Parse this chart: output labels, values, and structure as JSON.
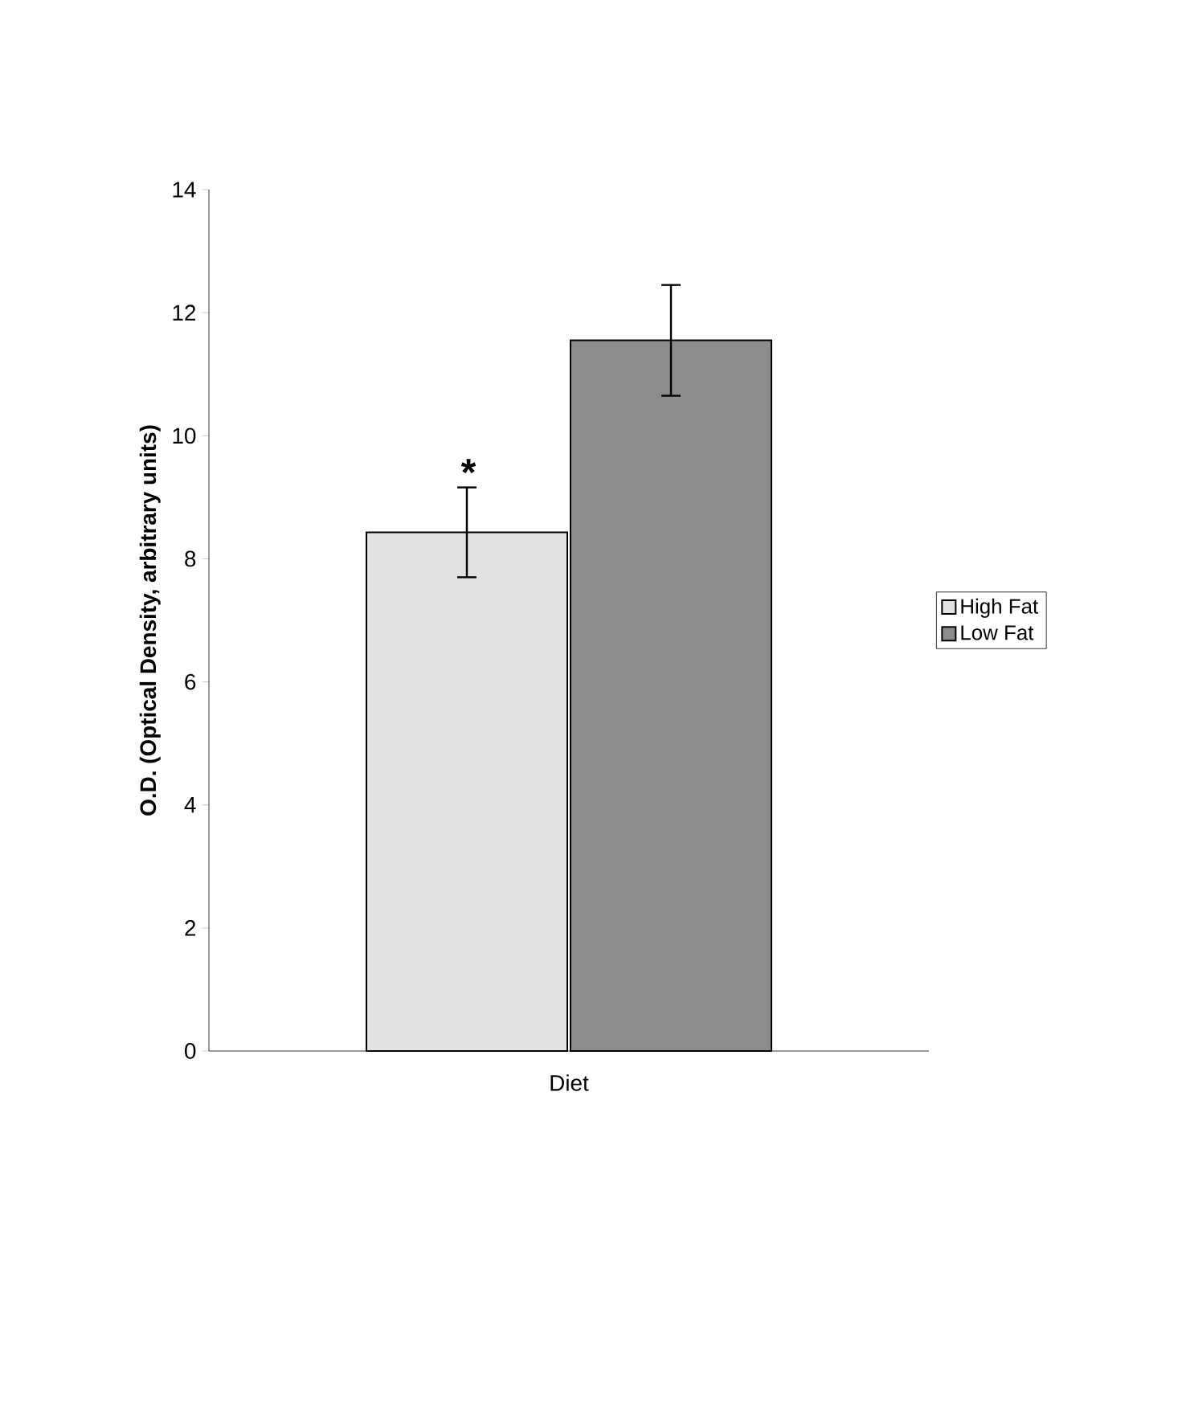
{
  "chart_data": {
    "type": "bar",
    "ylabel": "O.D. (Optical Density, arbitrary units)",
    "xlabel": "Diet",
    "categories": [
      null
    ],
    "series": [
      {
        "name": "High Fat",
        "color": "#e2e2e2",
        "values": [
          8.43
        ],
        "errors": [
          0.73
        ]
      },
      {
        "name": "Low Fat",
        "color": "#8c8c8c",
        "values": [
          11.55
        ],
        "errors": [
          0.9
        ]
      }
    ],
    "ylim": [
      0,
      14
    ],
    "yticks": [
      0,
      2,
      4,
      6,
      8,
      10,
      12,
      14
    ],
    "legend": "right",
    "annotations": [
      "*"
    ]
  }
}
